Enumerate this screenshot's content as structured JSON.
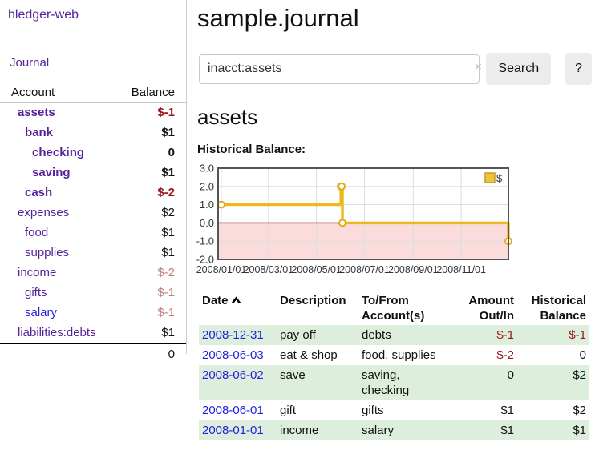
{
  "sidebar": {
    "brand": "hledger-web",
    "nav": {
      "journal": "Journal"
    },
    "accounts": {
      "headers": {
        "account": "Account",
        "balance": "Balance"
      },
      "rows": [
        {
          "name": "assets",
          "depth": 1,
          "bold": true,
          "balance": "$-1",
          "balance_style": "neg"
        },
        {
          "name": "bank",
          "depth": 2,
          "bold": true,
          "balance": "$1",
          "balance_style": "pos"
        },
        {
          "name": "checking",
          "depth": 3,
          "bold": true,
          "balance": "0",
          "balance_style": "pos"
        },
        {
          "name": "saving",
          "depth": 3,
          "bold": true,
          "balance": "$1",
          "balance_style": "pos"
        },
        {
          "name": "cash",
          "depth": 2,
          "bold": true,
          "balance": "$-2",
          "balance_style": "neg"
        },
        {
          "name": "expenses",
          "depth": 1,
          "bold": false,
          "balance": "$2",
          "balance_style": "pos"
        },
        {
          "name": "food",
          "depth": 2,
          "bold": false,
          "balance": "$1",
          "balance_style": "pos"
        },
        {
          "name": "supplies",
          "depth": 2,
          "bold": false,
          "balance": "$1",
          "balance_style": "pos"
        },
        {
          "name": "income",
          "depth": 1,
          "bold": false,
          "balance": "$-2",
          "balance_style": "negsoft"
        },
        {
          "name": "gifts",
          "depth": 2,
          "bold": false,
          "balance": "$-1",
          "balance_style": "negsoft"
        },
        {
          "name": "salary",
          "depth": 2,
          "bold": false,
          "balance": "$-1",
          "balance_style": "negsoft",
          "link_style": "blue"
        },
        {
          "name": "liabilities:debts",
          "depth": 1,
          "bold": false,
          "balance": "$1",
          "balance_style": "pos"
        }
      ],
      "total": "0"
    }
  },
  "header": {
    "title": "sample.journal"
  },
  "search": {
    "value": "inacct:assets",
    "clear_icon": "×",
    "button_label": "Search",
    "help_label": "?"
  },
  "account_view": {
    "heading": "assets",
    "chart_title": "Historical Balance:"
  },
  "chart_data": {
    "type": "line",
    "step": true,
    "title": "Historical Balance:",
    "series": [
      {
        "name": "$",
        "points": [
          {
            "date": "2008-01-01",
            "value": 1
          },
          {
            "date": "2008-06-01",
            "value": 2
          },
          {
            "date": "2008-06-02",
            "value": 2
          },
          {
            "date": "2008-06-03",
            "value": 0
          },
          {
            "date": "2008-12-31",
            "value": -1
          }
        ]
      }
    ],
    "x_range": [
      "2008-01-01",
      "2008-12-31"
    ],
    "ylim": [
      -2,
      3
    ],
    "y_ticks": [
      "3.0",
      "2.0",
      "1.0",
      "0.0",
      "-1.0",
      "-2.0"
    ],
    "x_ticks": [
      {
        "date": "2008-01-01",
        "label": "2008/01/01"
      },
      {
        "date": "2008-03-01",
        "label": "2008/03/01"
      },
      {
        "date": "2008-05-01",
        "label": "2008/05/01"
      },
      {
        "date": "2008-07-01",
        "label": "2008/07/01"
      },
      {
        "date": "2008-09-01",
        "label": "2008/09/01"
      },
      {
        "date": "2008-11-01",
        "label": "2008/11/01"
      }
    ],
    "legend": {
      "label": "$",
      "position": "top-right"
    },
    "grid": true,
    "colors": {
      "line": "#edb71f",
      "marker_stroke": "#e2ab12",
      "marker_fill": "#ffffff",
      "negative_fill": "#fbdcdc",
      "zero_line": "#8b0000",
      "gridline": "#dddddd",
      "border": "#555555",
      "legend_square_fill": "#eec23d",
      "legend_square_stroke": "#c39b24"
    }
  },
  "register": {
    "headers": {
      "date": "Date",
      "description": "Description",
      "accounts": "To/From Account(s)",
      "amount": "Amount Out/In",
      "balance": "Historical Balance"
    },
    "sort": {
      "column": "date",
      "direction": "asc"
    },
    "rows": [
      {
        "date": "2008-12-31",
        "description": "pay off",
        "accounts": "debts",
        "amount": "$-1",
        "amount_neg": true,
        "balance": "$-1",
        "balance_neg": true
      },
      {
        "date": "2008-06-03",
        "description": "eat & shop",
        "accounts": "food, supplies",
        "amount": "$-2",
        "amount_neg": true,
        "balance": "0",
        "balance_neg": false
      },
      {
        "date": "2008-06-02",
        "description": "save",
        "accounts": "saving, checking",
        "amount": "0",
        "amount_neg": false,
        "balance": "$2",
        "balance_neg": false
      },
      {
        "date": "2008-06-01",
        "description": "gift",
        "accounts": "gifts",
        "amount": "$1",
        "amount_neg": false,
        "balance": "$2",
        "balance_neg": false
      },
      {
        "date": "2008-01-01",
        "description": "income",
        "accounts": "salary",
        "amount": "$1",
        "amount_neg": false,
        "balance": "$1",
        "balance_neg": false
      }
    ]
  },
  "colors": {
    "link_purple": "#552299",
    "link_blue": "#2222dd",
    "negative": "#9a1616",
    "negative_soft": "#c08080",
    "stripe_green": "#ddeedd"
  }
}
